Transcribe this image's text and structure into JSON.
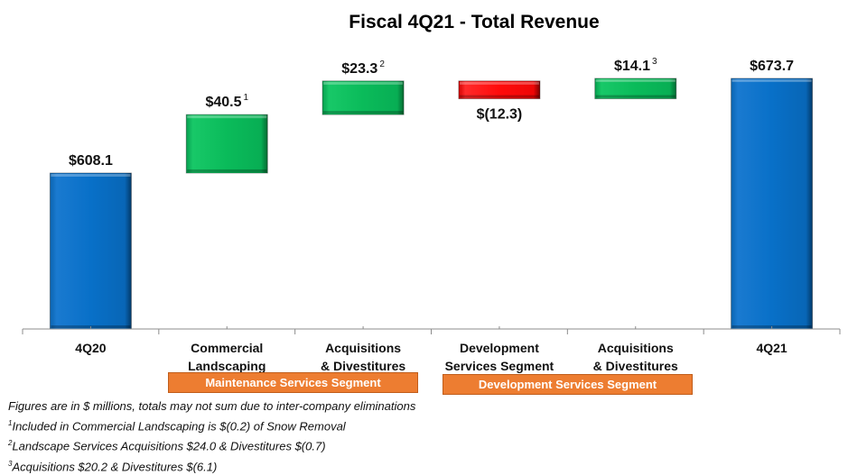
{
  "chart_data": {
    "type": "waterfall",
    "title": "Fiscal 4Q21 - Total Revenue",
    "unit": "$ millions",
    "ylim": [
      500,
      690
    ],
    "grid": false,
    "categories": [
      "4Q20",
      "Commercial Landscaping",
      "Acquisitions & Divestitures",
      "Development Services Segment",
      "Acquisitions & Divestitures",
      "4Q21"
    ],
    "category_lines": [
      [
        "4Q20"
      ],
      [
        "Commercial",
        "Landscaping"
      ],
      [
        "Acquisitions",
        "& Divestitures"
      ],
      [
        "Development",
        "Services Segment"
      ],
      [
        "Acquisitions",
        "& Divestitures"
      ],
      [
        "4Q21"
      ]
    ],
    "values": [
      608.1,
      40.5,
      23.3,
      -12.3,
      14.1,
      673.7
    ],
    "kinds": [
      "total",
      "increase",
      "increase",
      "decrease",
      "increase",
      "total"
    ],
    "data_labels": [
      "$608.1",
      "$40.5",
      "$23.3",
      "$(12.3)",
      "$14.1",
      "$673.7"
    ],
    "footnote_marks": [
      "",
      "1",
      "2",
      "",
      "3",
      ""
    ],
    "colors": {
      "total": "#0070c0",
      "increase": "#00b050",
      "decrease": "#ff0000"
    }
  },
  "segments": [
    {
      "label": "Maintenance Services Segment",
      "color": "#ed7d31"
    },
    {
      "label": "Development Services Segment",
      "color": "#ed7d31"
    }
  ],
  "notes": {
    "main": "Figures are in $ millions, totals may not sum due to inter-company eliminations",
    "fn1_mark": "1",
    "fn1": "Included in Commercial Landscaping is $(0.2) of Snow Removal",
    "fn2_mark": "2",
    "fn2": "Landscape Services Acquisitions $24.0 & Divestitures $(0.7)",
    "fn3_mark": "3",
    "fn3": "Acquisitions $20.2 & Divestitures $(6.1)"
  }
}
